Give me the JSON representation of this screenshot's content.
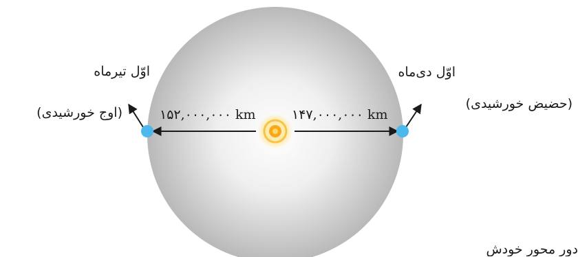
{
  "labels": {
    "left_date": "اوّل تیرماه",
    "left_note": "(اوج خورشیدی)",
    "right_date": "اوّل دی‌ماه",
    "right_note": "(حضیض خورشیدی)",
    "bottom_partial": "دور محور خودش"
  },
  "distances": {
    "left": "۱۵۲,۰۰۰,۰۰۰ km",
    "right": "۱۴۷,۰۰۰,۰۰۰ km"
  },
  "colors": {
    "earth_point": "#4db8ec",
    "sun_core": "#f7a81b",
    "sun_glow": "#fde9a8",
    "sphere_edge": "#b9b9b9",
    "arrow": "#1a1a1a"
  }
}
